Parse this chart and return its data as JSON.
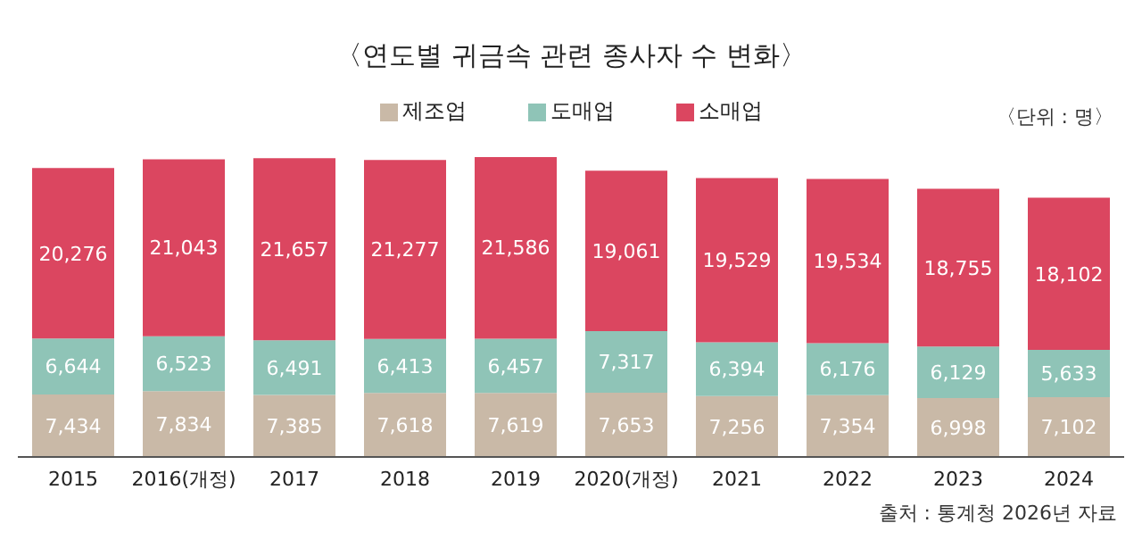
{
  "chart_data": {
    "type": "bar",
    "title": "〈연도별 귀금속 관련 종사자 수 변화〉",
    "categories": [
      "2015",
      "2016(개정)",
      "2017",
      "2018",
      "2019",
      "2020(개정)",
      "2021",
      "2022",
      "2023",
      "2024"
    ],
    "series": [
      {
        "name": "제조업",
        "color": "#c9b9a7",
        "values": [
          7434,
          7834,
          7385,
          7618,
          7619,
          7653,
          7256,
          7354,
          6998,
          7102
        ],
        "value_labels": [
          "7,434",
          "7,834",
          "7,385",
          "7,618",
          "7,619",
          "7,653",
          "7,256",
          "7,354",
          "6,998",
          "7,102"
        ]
      },
      {
        "name": "도매업",
        "color": "#8fc4b7",
        "values": [
          6644,
          6523,
          6491,
          6413,
          6457,
          7317,
          6394,
          6176,
          6129,
          5633
        ],
        "value_labels": [
          "6,644",
          "6,523",
          "6,491",
          "6,413",
          "6,457",
          "7,317",
          "6,394",
          "6,176",
          "6,129",
          "5,633"
        ]
      },
      {
        "name": "소매업",
        "color": "#db4660",
        "values": [
          20276,
          21043,
          21657,
          21277,
          21586,
          19061,
          19529,
          19534,
          18755,
          18102
        ],
        "value_labels": [
          "20,276",
          "21,043",
          "21,657",
          "21,277",
          "21,586",
          "19,061",
          "19,529",
          "19,534",
          "18,755",
          "18,102"
        ]
      }
    ],
    "stacked": true,
    "legend": "top",
    "grid": false,
    "tick_labels": "x",
    "annotations": [
      "〈단위 : 명〉",
      "출처 : 통계청 2026년 자료"
    ]
  }
}
